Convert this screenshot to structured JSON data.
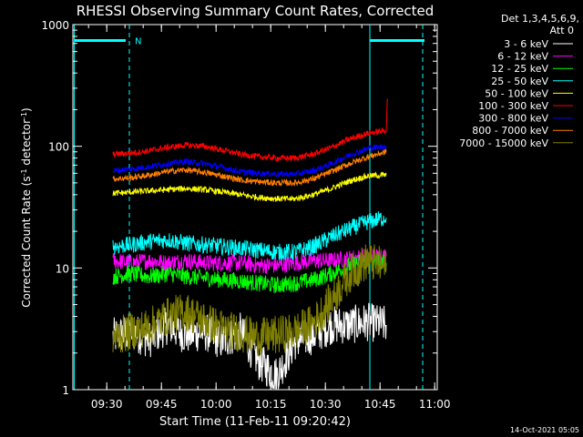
{
  "chart_data": {
    "type": "line",
    "title": "RHESSI Observing Summary Count Rates, Corrected",
    "xlabel": "Start Time (11-Feb-11 09:20:42)",
    "ylabel_main": "Corrected Count Rate (s",
    "ylabel_sup1": "-1",
    "ylabel_mid": " detector",
    "ylabel_sup2": "-1",
    "ylabel_end": ")",
    "yscale": "log",
    "ylim": [
      1,
      1000
    ],
    "xlim_minutes": [
      0,
      100
    ],
    "x_tick_labels": [
      "09:30",
      "09:45",
      "10:00",
      "10:15",
      "10:30",
      "10:45",
      "11:00"
    ],
    "x_tick_minutes": [
      9.3,
      24.3,
      39.3,
      54.3,
      69.3,
      84.3,
      99.3
    ],
    "y_tick_labels": [
      "1",
      "10",
      "100",
      "1000"
    ],
    "y_tick_values": [
      1,
      10,
      100,
      1000
    ],
    "legend_header": [
      "Det 1,3,4,5,6,9,",
      "Att 0"
    ],
    "legend_position": "right",
    "series": [
      {
        "name": "3 - 6 keV",
        "color": "#ffffff",
        "points": [
          [
            11,
            2.7
          ],
          [
            16,
            3
          ],
          [
            21,
            2.6
          ],
          [
            26,
            3.4
          ],
          [
            31,
            2.8
          ],
          [
            36,
            3
          ],
          [
            41,
            2.5
          ],
          [
            46,
            3
          ],
          [
            51,
            1.7
          ],
          [
            56,
            1.3
          ],
          [
            61,
            2.5
          ],
          [
            66,
            2.8
          ],
          [
            71,
            3.4
          ],
          [
            76,
            3.4
          ],
          [
            81,
            3.6
          ],
          [
            86,
            3.4
          ]
        ]
      },
      {
        "name": "6 - 12 keV",
        "color": "#ff00ff",
        "points": [
          [
            11,
            11.5
          ],
          [
            16,
            11
          ],
          [
            21,
            11.5
          ],
          [
            26,
            11
          ],
          [
            31,
            11.5
          ],
          [
            36,
            11
          ],
          [
            41,
            11
          ],
          [
            46,
            11
          ],
          [
            51,
            10.5
          ],
          [
            56,
            10.5
          ],
          [
            61,
            11
          ],
          [
            66,
            11.5
          ],
          [
            71,
            11.5
          ],
          [
            76,
            12
          ],
          [
            81,
            12.5
          ],
          [
            86,
            12.5
          ]
        ]
      },
      {
        "name": "12 - 25 keV",
        "color": "#00ff00",
        "points": [
          [
            11,
            8.5
          ],
          [
            16,
            9
          ],
          [
            21,
            8.5
          ],
          [
            26,
            9
          ],
          [
            31,
            8.5
          ],
          [
            36,
            8.3
          ],
          [
            41,
            8
          ],
          [
            46,
            7.8
          ],
          [
            51,
            7.5
          ],
          [
            56,
            7.2
          ],
          [
            61,
            7.5
          ],
          [
            66,
            8
          ],
          [
            71,
            9
          ],
          [
            76,
            10.5
          ],
          [
            81,
            11.5
          ],
          [
            86,
            11
          ]
        ]
      },
      {
        "name": "25 - 50 keV",
        "color": "#00ffff",
        "points": [
          [
            11,
            15
          ],
          [
            16,
            15.5
          ],
          [
            21,
            16.5
          ],
          [
            26,
            17
          ],
          [
            31,
            16
          ],
          [
            36,
            15.5
          ],
          [
            41,
            15
          ],
          [
            46,
            14.5
          ],
          [
            51,
            14
          ],
          [
            56,
            13.5
          ],
          [
            61,
            13.5
          ],
          [
            66,
            15
          ],
          [
            71,
            18
          ],
          [
            76,
            21
          ],
          [
            81,
            24
          ],
          [
            86,
            26
          ]
        ]
      },
      {
        "name": "50 - 100 keV",
        "color": "#ffff00",
        "points": [
          [
            11,
            41
          ],
          [
            16,
            42
          ],
          [
            21,
            43
          ],
          [
            26,
            44
          ],
          [
            31,
            45
          ],
          [
            36,
            44
          ],
          [
            41,
            42
          ],
          [
            46,
            40
          ],
          [
            51,
            38
          ],
          [
            56,
            37
          ],
          [
            61,
            37
          ],
          [
            66,
            40
          ],
          [
            71,
            45
          ],
          [
            76,
            52
          ],
          [
            81,
            57
          ],
          [
            86,
            58
          ]
        ]
      },
      {
        "name": "100 - 300 keV",
        "color": "#ff0000",
        "points": [
          [
            11,
            86
          ],
          [
            16,
            88
          ],
          [
            21,
            92
          ],
          [
            26,
            98
          ],
          [
            31,
            102
          ],
          [
            36,
            100
          ],
          [
            41,
            93
          ],
          [
            46,
            86
          ],
          [
            51,
            82
          ],
          [
            56,
            80
          ],
          [
            61,
            80
          ],
          [
            66,
            86
          ],
          [
            71,
            98
          ],
          [
            76,
            115
          ],
          [
            81,
            128
          ],
          [
            86,
            135
          ],
          [
            86.3,
            245
          ]
        ]
      },
      {
        "name": "300 - 800 keV",
        "color": "#0000ff",
        "points": [
          [
            11,
            63
          ],
          [
            16,
            65
          ],
          [
            21,
            68
          ],
          [
            26,
            72
          ],
          [
            31,
            75
          ],
          [
            36,
            72
          ],
          [
            41,
            67
          ],
          [
            46,
            62
          ],
          [
            51,
            60
          ],
          [
            56,
            59
          ],
          [
            61,
            59
          ],
          [
            66,
            63
          ],
          [
            71,
            72
          ],
          [
            76,
            85
          ],
          [
            81,
            96
          ],
          [
            86,
            100
          ]
        ]
      },
      {
        "name": "800 - 7000 keV",
        "color": "#ff7f00",
        "points": [
          [
            11,
            54
          ],
          [
            16,
            55
          ],
          [
            21,
            58
          ],
          [
            26,
            62
          ],
          [
            31,
            64
          ],
          [
            36,
            61
          ],
          [
            41,
            57
          ],
          [
            46,
            53
          ],
          [
            51,
            51
          ],
          [
            56,
            50
          ],
          [
            61,
            50
          ],
          [
            66,
            54
          ],
          [
            71,
            62
          ],
          [
            76,
            72
          ],
          [
            81,
            82
          ],
          [
            86,
            90
          ]
        ]
      },
      {
        "name": "7000 - 15000 keV",
        "color": "#7f7f00",
        "points": [
          [
            11,
            2.7
          ],
          [
            16,
            3
          ],
          [
            21,
            3.3
          ],
          [
            26,
            4
          ],
          [
            31,
            4.4
          ],
          [
            36,
            3.7
          ],
          [
            41,
            3.2
          ],
          [
            46,
            2.9
          ],
          [
            51,
            2.7
          ],
          [
            56,
            2.8
          ],
          [
            61,
            3
          ],
          [
            66,
            3.5
          ],
          [
            71,
            5.5
          ],
          [
            76,
            9
          ],
          [
            81,
            11.5
          ],
          [
            86,
            10
          ]
        ]
      }
    ]
  },
  "footer_timestamp": "14-Oct-2021 05:05",
  "annotation_marker": "N"
}
